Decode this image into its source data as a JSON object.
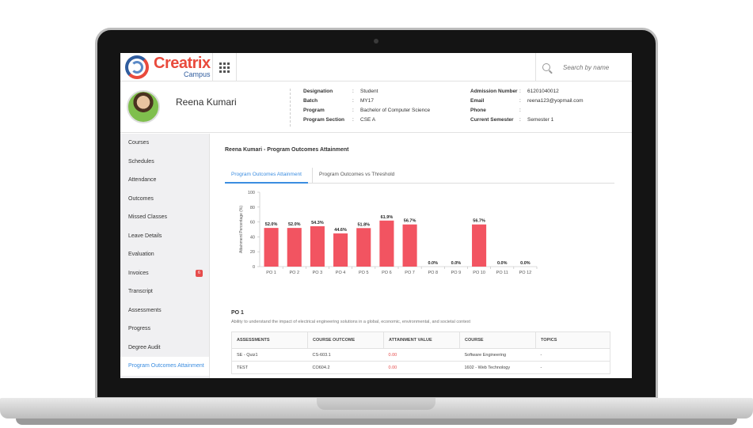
{
  "brand": {
    "name": "Creatrix",
    "sub": "Campus"
  },
  "search": {
    "placeholder": "Search by name"
  },
  "student": {
    "name": "Reena Kumari",
    "left_fields": [
      {
        "label": "Designation",
        "value": "Student"
      },
      {
        "label": "Batch",
        "value": "MY17"
      },
      {
        "label": "Program",
        "value": "Bachelor of Computer Science"
      },
      {
        "label": "Program Section",
        "value": "CSE A"
      }
    ],
    "right_fields": [
      {
        "label": "Admission Number",
        "value": "61201040012"
      },
      {
        "label": "Email",
        "value": "reena123@yopmail.com"
      },
      {
        "label": "Phone",
        "value": ""
      },
      {
        "label": "Current Semester",
        "value": "Semester 1"
      }
    ]
  },
  "sidebar": {
    "items": [
      {
        "label": "Courses"
      },
      {
        "label": "Schedules"
      },
      {
        "label": "Attendance"
      },
      {
        "label": "Outcomes"
      },
      {
        "label": "Missed Classes"
      },
      {
        "label": "Leave Details"
      },
      {
        "label": "Evaluation"
      },
      {
        "label": "Invoices",
        "badge": "6"
      },
      {
        "label": "Transcript"
      },
      {
        "label": "Assessments"
      },
      {
        "label": "Progress"
      },
      {
        "label": "Degree Audit"
      },
      {
        "label": "Program Outcomes Attainment"
      }
    ]
  },
  "main": {
    "title": "Reena Kumari - Program Outcomes Attainment",
    "tabs": [
      "Program Outcomes Attainment",
      "Program Outcomes vs Threshold"
    ],
    "po_title": "PO 1",
    "po_desc": "Ability to understand the impact of electrical engineering solutions in a global, economic, environmental, and societal context",
    "table": {
      "headers": [
        "ASSESSMENTS",
        "COURSE OUTCOME",
        "ATTAINMENT VALUE",
        "COURSE",
        "TOPICS"
      ],
      "rows": [
        [
          "SE - Quiz1",
          "CS-603.1",
          "0.00",
          "Software Engineering",
          "-"
        ],
        [
          "TEST",
          "CO604.2",
          "0.00",
          "1602 - Web Technology",
          "-"
        ]
      ]
    }
  },
  "colors": {
    "bar": "#f25461",
    "accent": "#3b8de0",
    "brand": "#e94a3c"
  },
  "chart_data": {
    "type": "bar",
    "title": "",
    "xlabel": "",
    "ylabel": "Attainment Percentage (%)",
    "ylim": [
      0,
      100
    ],
    "yticks": [
      0,
      20,
      40,
      60,
      80,
      100
    ],
    "categories": [
      "PO 1",
      "PO 2",
      "PO 3",
      "PO 4",
      "PO 5",
      "PO 6",
      "PO 7",
      "PO 8",
      "PO 9",
      "PO 10",
      "PO 11",
      "PO 12"
    ],
    "values": [
      52.0,
      52.0,
      54.3,
      44.6,
      51.8,
      61.9,
      56.7,
      0.0,
      0.0,
      56.7,
      0.0,
      0.0
    ],
    "labels": [
      "52.0%",
      "52.0%",
      "54.3%",
      "44.6%",
      "51.8%",
      "61.9%",
      "56.7%",
      "0.0%",
      "0.0%",
      "56.7%",
      "0.0%",
      "0.0%"
    ]
  }
}
